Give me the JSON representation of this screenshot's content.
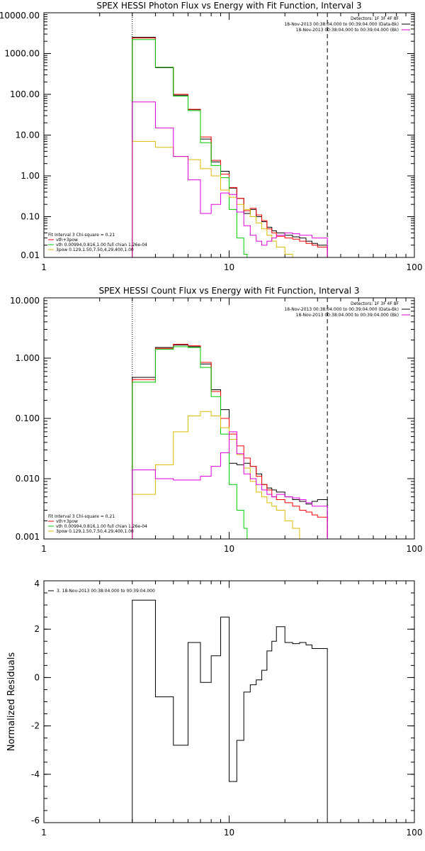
{
  "chart_data": [
    {
      "type": "line",
      "title": "SPEX HESSI Photon Flux vs Energy with Fit Function, Interval 3",
      "xscale": "log",
      "yscale": "log",
      "xlim": [
        1,
        100
      ],
      "ylim": [
        0.01,
        10000
      ],
      "xticks": [
        1,
        10,
        100
      ],
      "xtick_labels": [
        "1",
        "10",
        "100"
      ],
      "yticks": [
        0.01,
        0.1,
        1,
        10,
        100,
        1000,
        10000
      ],
      "ytick_labels": [
        "0.01",
        "0.10",
        "1.00",
        "10.00",
        "100.00",
        "1000.00",
        "10000.00"
      ],
      "vlines": [
        {
          "x": 3,
          "style": "dotted"
        },
        {
          "x": 33.9,
          "style": "dashed"
        }
      ],
      "legend_top_right": [
        {
          "text": "Detectors: 1F 3F 4F 8F",
          "color": "#000000"
        },
        {
          "text": "18-Nov-2013 00:38:04.000 to 00:39:04.000 (Data-Bk)",
          "color": "#000000"
        },
        {
          "text": "18-Nov-2013 00:38:04.000 to 00:39:04.000 (Bk)",
          "color": "#dd00dd"
        }
      ],
      "legend_bottom_left": [
        {
          "text": "Fit Interval 3   Chi-square = 0.21",
          "color": "#000000"
        },
        {
          "text": "vth+3pow",
          "color": "#ff0000"
        },
        {
          "text": "vth 0.00994,0.816,1.00  full chian 1.26e-04",
          "color": "#00cc00"
        },
        {
          "text": "3pow 0.129,1.50,7.50,4.29,400,1.00",
          "color": "#ddbb00"
        }
      ],
      "x_edges": [
        3.0,
        4.0,
        5.0,
        6.0,
        7.0,
        8.0,
        9.0,
        10.0,
        11.0,
        12.0,
        13.0,
        14.0,
        15.0,
        16.0,
        17.0,
        18.0,
        20.0,
        22.0,
        24.0,
        26.0,
        28.0,
        30.0,
        33.9
      ],
      "series": [
        {
          "color": "#000000",
          "stop_x": 33.9,
          "values": [
            2500,
            450,
            95,
            42,
            8,
            2.2,
            1.3,
            0.5,
            0.28,
            0.12,
            0.15,
            0.1,
            0.075,
            0.055,
            0.045,
            0.04,
            0.035,
            0.032,
            0.03,
            0.025,
            0.022,
            0.02
          ]
        },
        {
          "color": "#ff0000",
          "stop_x": 33.9,
          "values": [
            2400,
            460,
            100,
            43,
            9,
            2.4,
            1.1,
            0.52,
            0.28,
            0.14,
            0.16,
            0.11,
            0.08,
            0.05,
            0.04,
            0.033,
            0.03,
            0.028,
            0.025,
            0.022,
            0.02,
            0.018
          ]
        },
        {
          "color": "#00cc00",
          "stop_x": 12.5,
          "values": [
            2200,
            460,
            90,
            40,
            6.5,
            1.8,
            0.9,
            0.15,
            0.03,
            0.012
          ]
        },
        {
          "color": "#ddbb00",
          "stop_x": 24.0,
          "values": [
            7,
            5,
            3,
            2.5,
            1.5,
            1.0,
            0.45,
            0.3,
            0.2,
            0.15,
            0.1,
            0.07,
            0.05,
            0.035,
            0.025,
            0.018,
            0.012,
            0.009
          ]
        },
        {
          "color": "#dd00dd",
          "stop_x": 33.9,
          "values": [
            65,
            15,
            3,
            0.8,
            0.12,
            0.2,
            0.38,
            0.35,
            0.13,
            0.06,
            0.035,
            0.025,
            0.02,
            0.025,
            0.03,
            0.035,
            0.04,
            0.038,
            0.035,
            0.035,
            0.03,
            0.03
          ]
        }
      ]
    },
    {
      "type": "line",
      "title": "SPEX HESSI Count Flux vs Energy with Fit Function, Interval 3",
      "xscale": "log",
      "yscale": "log",
      "xlim": [
        1,
        100
      ],
      "ylim": [
        0.001,
        10
      ],
      "xticks": [
        1,
        10,
        100
      ],
      "xtick_labels": [
        "1",
        "10",
        "100"
      ],
      "yticks": [
        0.001,
        0.01,
        0.1,
        1,
        10
      ],
      "ytick_labels": [
        "0.001",
        "0.010",
        "0.100",
        "1.000",
        "10.000"
      ],
      "vlines": [
        {
          "x": 3,
          "style": "dotted"
        },
        {
          "x": 33.9,
          "style": "dashed"
        }
      ],
      "legend_top_right": [
        {
          "text": "Detectors: 1F 3F 4F 8F",
          "color": "#000000"
        },
        {
          "text": "18-Nov-2013 00:38:04.000 to 00:39:04.000 (Data-Bk)",
          "color": "#000000"
        },
        {
          "text": "18-Nov-2013 00:38:04.000 to 00:39:04.000 (Bk)",
          "color": "#dd00dd"
        }
      ],
      "legend_bottom_left": [
        {
          "text": "Fit Interval 3   Chi-square = 0.21",
          "color": "#000000"
        },
        {
          "text": "vth+3pow",
          "color": "#ff0000"
        },
        {
          "text": "vth 0.00994,0.816,1.00  full chian 1.26e-04",
          "color": "#00cc00"
        },
        {
          "text": "3pow 0.129,1.50,7.50,4.29,400,1.00",
          "color": "#ddbb00"
        }
      ],
      "x_edges": [
        3.0,
        4.0,
        5.0,
        6.0,
        7.0,
        8.0,
        9.0,
        10.0,
        11.0,
        12.0,
        13.0,
        14.0,
        15.0,
        16.0,
        17.0,
        18.0,
        20.0,
        22.0,
        24.0,
        26.0,
        28.0,
        30.0,
        33.9
      ],
      "series": [
        {
          "color": "#000000",
          "stop_x": 33.9,
          "values": [
            0.48,
            1.5,
            1.65,
            1.55,
            0.8,
            0.3,
            0.14,
            0.018,
            0.017,
            0.018,
            0.016,
            0.012,
            0.008,
            0.007,
            0.0065,
            0.006,
            0.005,
            0.0045,
            0.0042,
            0.0038,
            0.0042,
            0.0045
          ]
        },
        {
          "color": "#ff0000",
          "stop_x": 33.9,
          "values": [
            0.44,
            1.45,
            1.7,
            1.6,
            0.85,
            0.28,
            0.1,
            0.055,
            0.035,
            0.022,
            0.016,
            0.011,
            0.008,
            0.0065,
            0.005,
            0.0045,
            0.004,
            0.0035,
            0.003,
            0.0028,
            0.0025,
            0.0023
          ]
        },
        {
          "color": "#00cc00",
          "stop_x": 12.5,
          "values": [
            0.4,
            1.4,
            1.55,
            1.5,
            0.7,
            0.23,
            0.055,
            0.008,
            0.003,
            0.0015
          ]
        },
        {
          "color": "#ddbb00",
          "stop_x": 24.0,
          "values": [
            0.0055,
            0.017,
            0.06,
            0.11,
            0.13,
            0.11,
            0.07,
            0.045,
            0.025,
            0.015,
            0.009,
            0.006,
            0.005,
            0.004,
            0.0035,
            0.003,
            0.002,
            0.0015
          ]
        },
        {
          "color": "#dd00dd",
          "stop_x": 33.9,
          "values": [
            0.014,
            0.01,
            0.0095,
            0.0095,
            0.011,
            0.016,
            0.027,
            0.06,
            0.026,
            0.012,
            0.01,
            0.008,
            0.0065,
            0.0055,
            0.005,
            0.0055,
            0.005,
            0.0048,
            0.0045,
            0.004,
            0.0035,
            0.0035
          ]
        }
      ]
    },
    {
      "type": "line",
      "title": "",
      "xscale": "log",
      "yscale": "linear",
      "xlim": [
        1,
        100
      ],
      "ylim": [
        -6,
        4
      ],
      "xticks": [
        1,
        10,
        100
      ],
      "xtick_labels": [
        "1",
        "10",
        "100"
      ],
      "yticks": [
        -6,
        -4,
        -2,
        0,
        2,
        4
      ],
      "ytick_labels": [
        "-6",
        "-4",
        "-2",
        "0",
        "2",
        "4"
      ],
      "ylabel": "Normalized Residuals",
      "legend_top_left": [
        {
          "text": "3. 18-Nov-2013 00:38:04.000 to 00:39:04.000",
          "color": "#000000"
        }
      ],
      "x_edges": [
        3.0,
        4.0,
        5.0,
        6.0,
        7.0,
        8.0,
        9.0,
        10.0,
        11.0,
        12.0,
        13.0,
        14.0,
        15.0,
        16.0,
        17.0,
        18.0,
        20.0,
        22.0,
        24.0,
        26.0,
        28.0,
        30.0,
        33.9
      ],
      "series": [
        {
          "color": "#000000",
          "stop_x": 33.9,
          "values": [
            3.2,
            -0.8,
            -2.8,
            1.45,
            -0.2,
            0.9,
            2.5,
            -4.3,
            -2.6,
            -0.6,
            -0.3,
            -0.1,
            0.3,
            1.1,
            1.5,
            2.1,
            1.45,
            1.4,
            1.45,
            1.35,
            1.2,
            1.2
          ]
        }
      ]
    }
  ]
}
